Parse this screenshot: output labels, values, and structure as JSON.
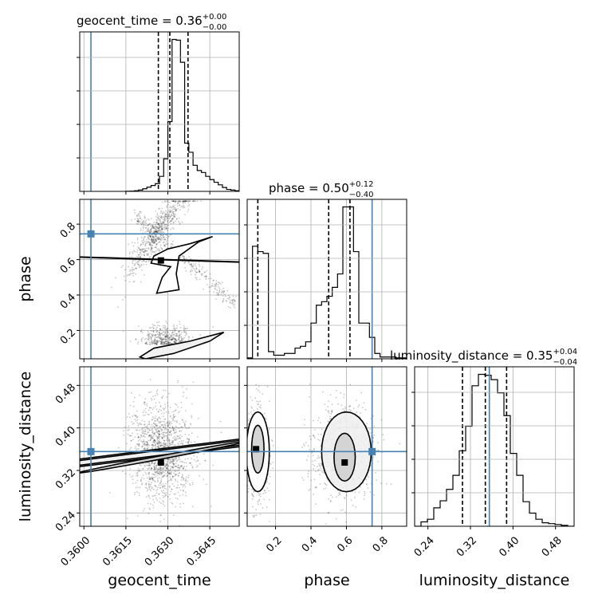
{
  "chart_data": {
    "type": "corner",
    "parameters": [
      "geocent_time",
      "phase",
      "luminosity_distance"
    ],
    "truth": {
      "geocent_time": 0.36025,
      "phase": 0.745,
      "luminosity_distance": 0.3555
    },
    "ranges": {
      "geocent_time": [
        0.35985,
        0.36555
      ],
      "phase": [
        0.04,
        0.94
      ],
      "luminosity_distance": [
        0.215,
        0.515
      ]
    },
    "axes": {
      "geocent_time": {
        "label": "geocent_time",
        "ticks": [
          0.36,
          0.3615,
          0.363,
          0.3645
        ],
        "tick_labels": [
          "0.3600",
          "0.3615",
          "0.3630",
          "0.3645"
        ]
      },
      "phase": {
        "label": "phase",
        "ticks": [
          0.2,
          0.4,
          0.6,
          0.8
        ],
        "tick_labels": [
          "0.2",
          "0.4",
          "0.6",
          "0.8"
        ]
      },
      "luminosity_distance": {
        "label": "luminosity_distance",
        "ticks": [
          0.24,
          0.32,
          0.4,
          0.48
        ],
        "tick_labels": [
          "0.24",
          "0.32",
          "0.40",
          "0.48"
        ]
      }
    },
    "titles": [
      {
        "param": "geocent_time",
        "prefix": "geocent_time = 0.36",
        "plus": "+0.00",
        "minus": "−0.00"
      },
      {
        "param": "phase",
        "prefix": "phase = 0.50",
        "plus": "+0.12",
        "minus": "−0.40"
      },
      {
        "param": "luminosity_distance",
        "prefix": "luminosity_distance = 0.35",
        "plus": "+0.04",
        "minus": "−0.04"
      }
    ],
    "quantiles": {
      "geocent_time": [
        0.36266,
        0.36307,
        0.36372
      ],
      "phase": [
        0.1,
        0.5,
        0.62
      ],
      "luminosity_distance": [
        0.305,
        0.348,
        0.388
      ]
    },
    "histograms": {
      "geocent_time": {
        "edges": [
          0.3615,
          0.36165,
          0.3618,
          0.36195,
          0.3621,
          0.36225,
          0.3624,
          0.36255,
          0.3627,
          0.36285,
          0.363,
          0.36315,
          0.3633,
          0.36345,
          0.3636,
          0.36375,
          0.3639,
          0.36405,
          0.3642,
          0.36435,
          0.3645,
          0.36465,
          0.3648,
          0.36495,
          0.3651,
          0.36525,
          0.3654,
          0.36555
        ],
        "counts": [
          1,
          2,
          5,
          10,
          20,
          32,
          45,
          59,
          115,
          250,
          535,
          1165,
          1160,
          990,
          370,
          300,
          200,
          160,
          145,
          115,
          90,
          70,
          50,
          30,
          15,
          10,
          5
        ]
      },
      "phase": {
        "edges": [
          0.04,
          0.07,
          0.1,
          0.13,
          0.16,
          0.19,
          0.22,
          0.25,
          0.28,
          0.31,
          0.34,
          0.37,
          0.4,
          0.43,
          0.46,
          0.49,
          0.52,
          0.55,
          0.58,
          0.61,
          0.64,
          0.67,
          0.7,
          0.73,
          0.76,
          0.79,
          0.82,
          0.85,
          0.88,
          0.91,
          0.94
        ],
        "counts": [
          5,
          630,
          600,
          590,
          40,
          20,
          20,
          30,
          30,
          60,
          70,
          95,
          200,
          300,
          320,
          350,
          400,
          475,
          850,
          850,
          600,
          200,
          200,
          120,
          30,
          10,
          10,
          10,
          5,
          5
        ]
      },
      "luminosity_distance": {
        "edges": [
          0.215,
          0.227,
          0.239,
          0.251,
          0.263,
          0.275,
          0.287,
          0.299,
          0.311,
          0.323,
          0.335,
          0.347,
          0.359,
          0.371,
          0.383,
          0.395,
          0.407,
          0.419,
          0.431,
          0.443,
          0.455,
          0.467,
          0.479,
          0.491,
          0.503,
          0.515
        ],
        "counts": [
          0,
          25,
          40,
          105,
          145,
          210,
          290,
          430,
          570,
          800,
          865,
          860,
          835,
          760,
          630,
          415,
          290,
          140,
          75,
          40,
          20,
          15,
          10,
          5,
          0
        ]
      }
    }
  }
}
